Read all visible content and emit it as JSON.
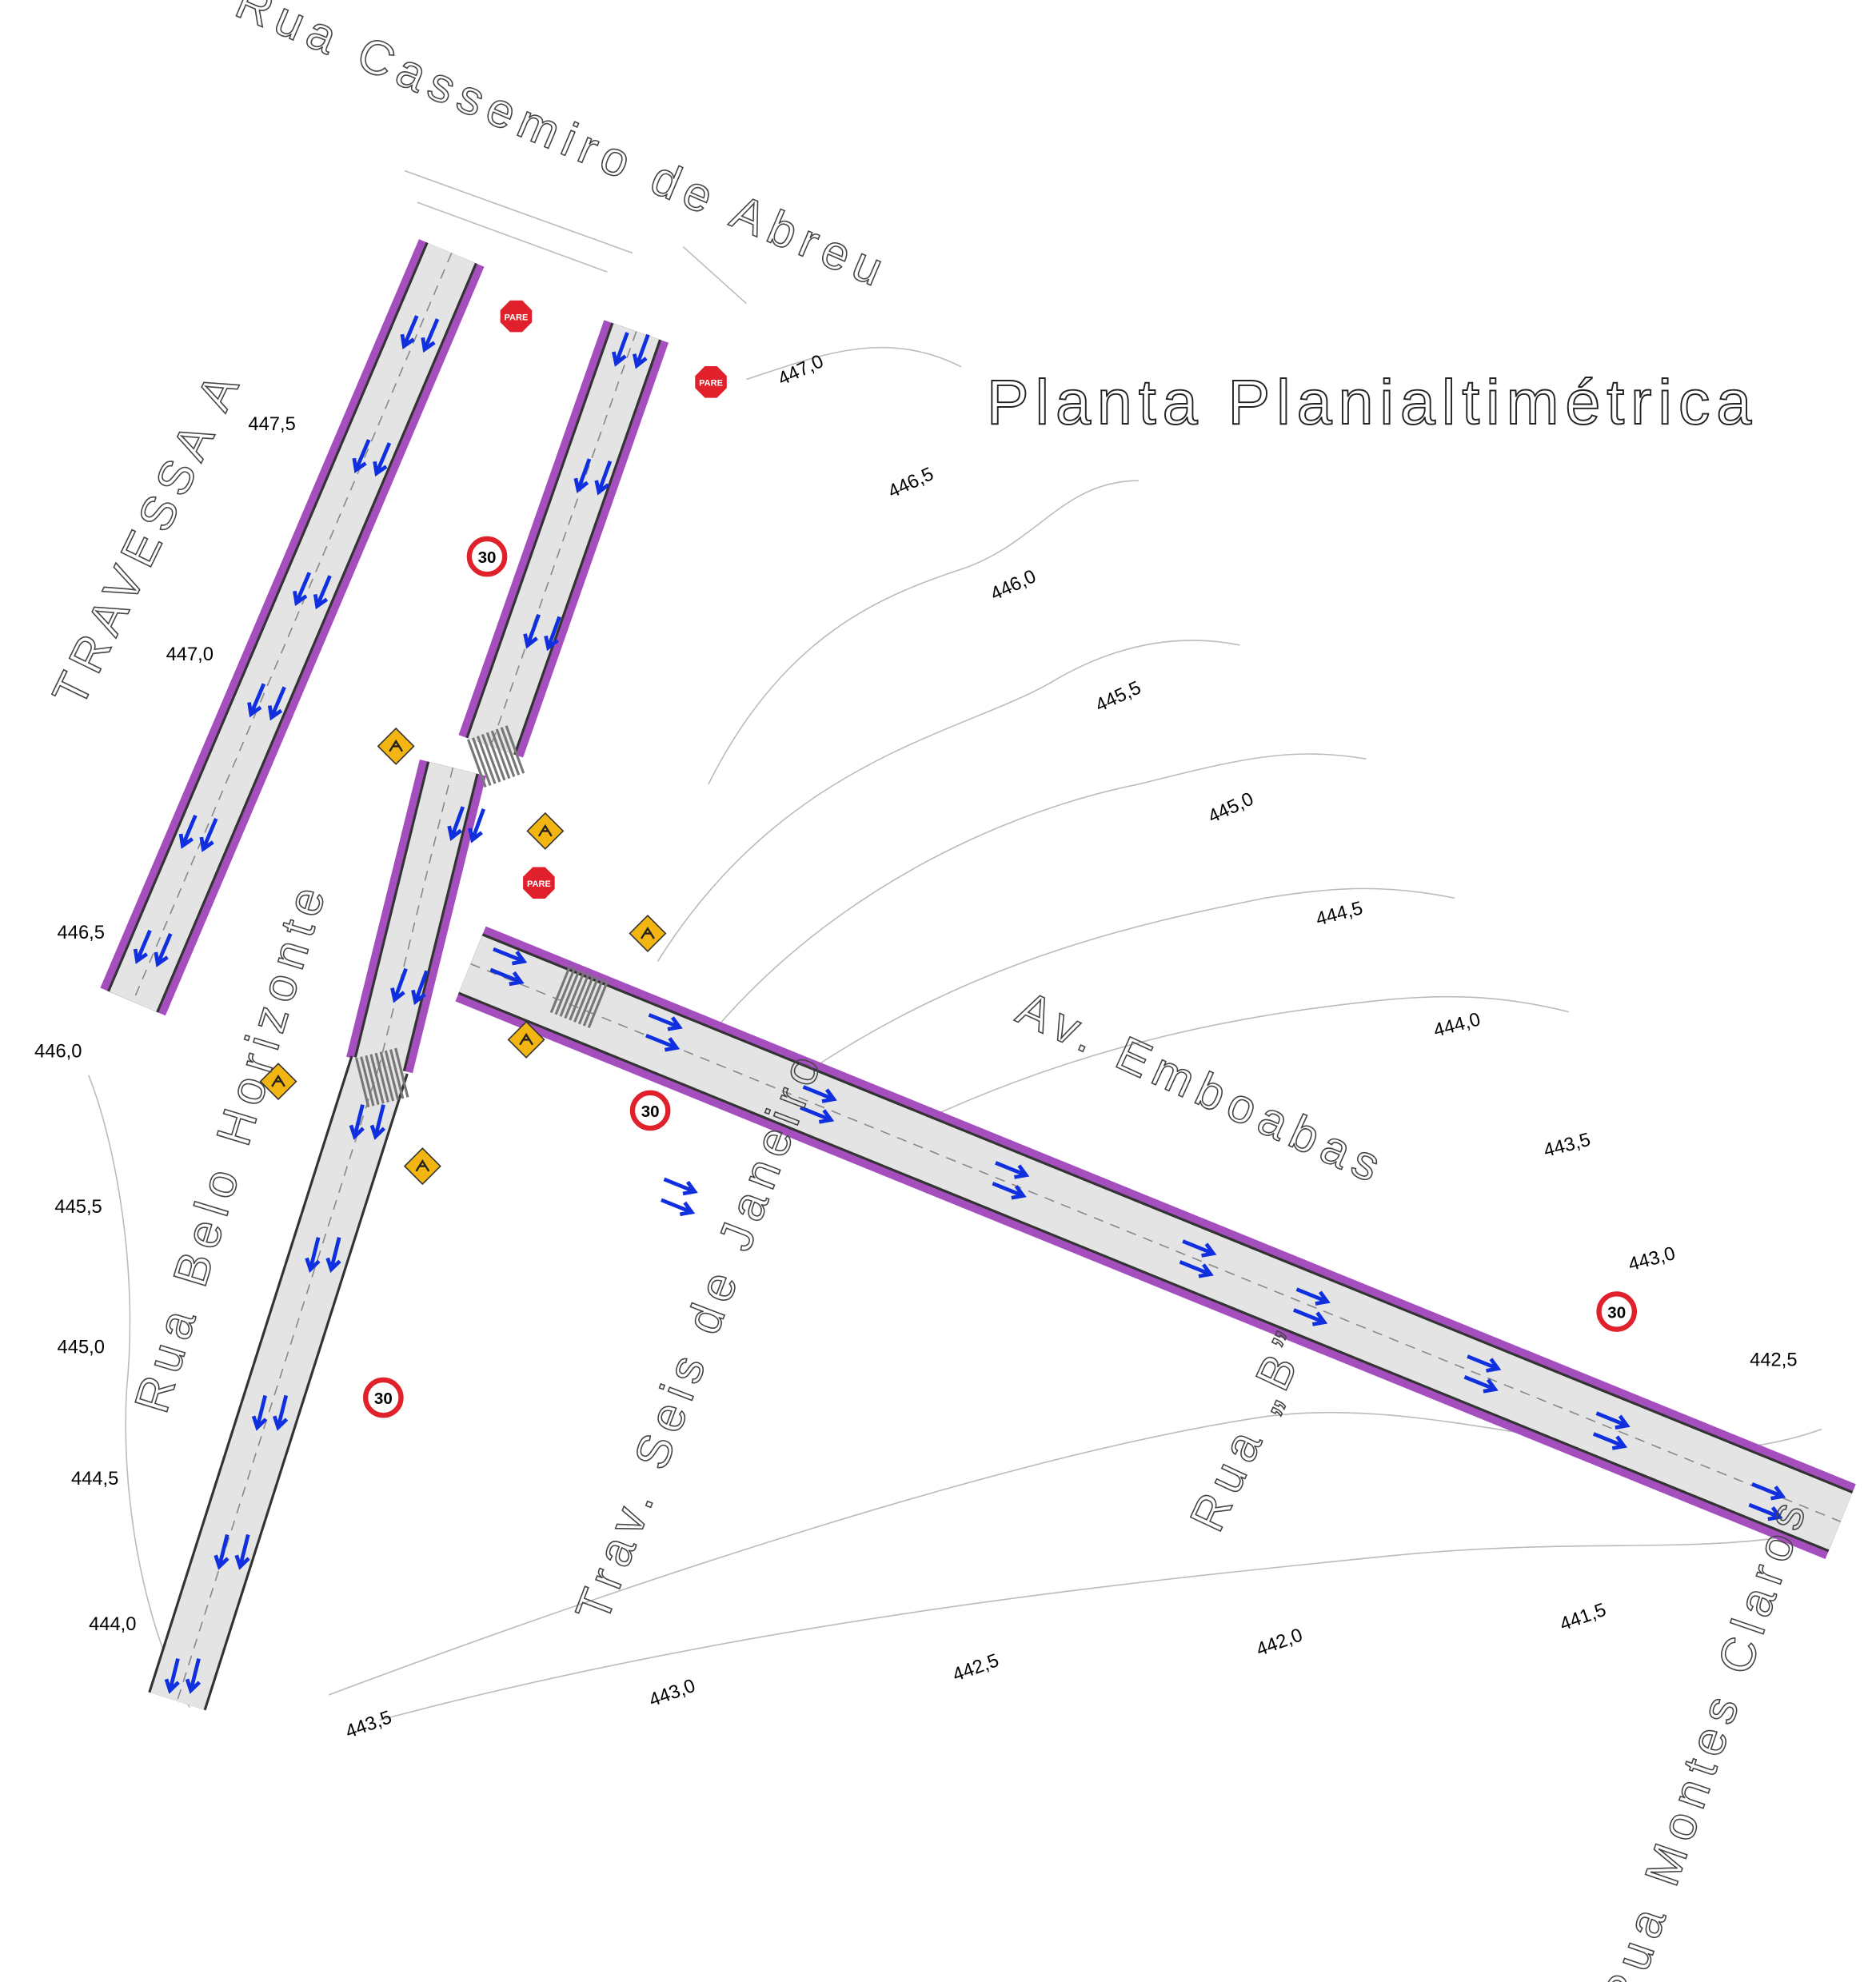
{
  "title": "Planta Planialtimétrica",
  "streets": [
    "Rua Cassemiro de Abreu",
    "TRAVESSA A",
    "Rua Belo Horizonte",
    "Av. Emboabas",
    "Trav. Seis de Janeiro",
    "Rua „B”",
    "Rua Montes Claros"
  ],
  "contours": [
    "447,0",
    "447,5",
    "447,0",
    "446,5",
    "446,0",
    "445,5",
    "445,0",
    "444,5",
    "444,0",
    "443,5",
    "443,0",
    "442,5",
    "446,5",
    "446,0",
    "445,5",
    "445,0",
    "444,5",
    "444,0",
    "443,5",
    "443,0",
    "442,5",
    "442,0",
    "441,5"
  ],
  "stop_signs": [
    "PARE",
    "PARE",
    "PARE"
  ],
  "speed_signs": [
    "30",
    "30",
    "30",
    "30"
  ]
}
